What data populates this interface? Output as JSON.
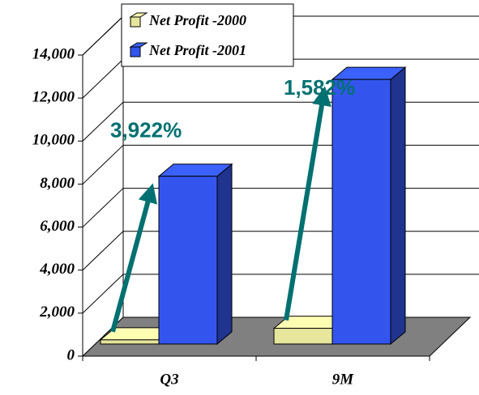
{
  "chart_data": {
    "type": "bar3d",
    "categories": [
      "Q3",
      "9M"
    ],
    "series": [
      {
        "name": "Net Profit -2000",
        "color": "#e6e69c",
        "values": [
          194,
          731
        ]
      },
      {
        "name": "Net Profit -2001",
        "color": "#3355ee",
        "values": [
          7800,
          12300
        ]
      }
    ],
    "annotations": [
      {
        "text": "3,922%",
        "color": "#007070"
      },
      {
        "text": "1,582%",
        "color": "#007070"
      }
    ],
    "ylim": [
      0,
      14000
    ],
    "yticks": [
      0,
      {
        "value": 2000,
        "label": "2,000"
      },
      {
        "value": 4000,
        "label": "4,000"
      },
      {
        "value": 6000,
        "label": "6,000"
      },
      {
        "value": 8000,
        "label": "8,000"
      },
      {
        "value": 10000,
        "label": "10,000"
      },
      {
        "value": 12000,
        "label": "12,000"
      },
      {
        "value": 14000,
        "label": "14,000"
      }
    ],
    "grid": true,
    "legend": "top"
  }
}
